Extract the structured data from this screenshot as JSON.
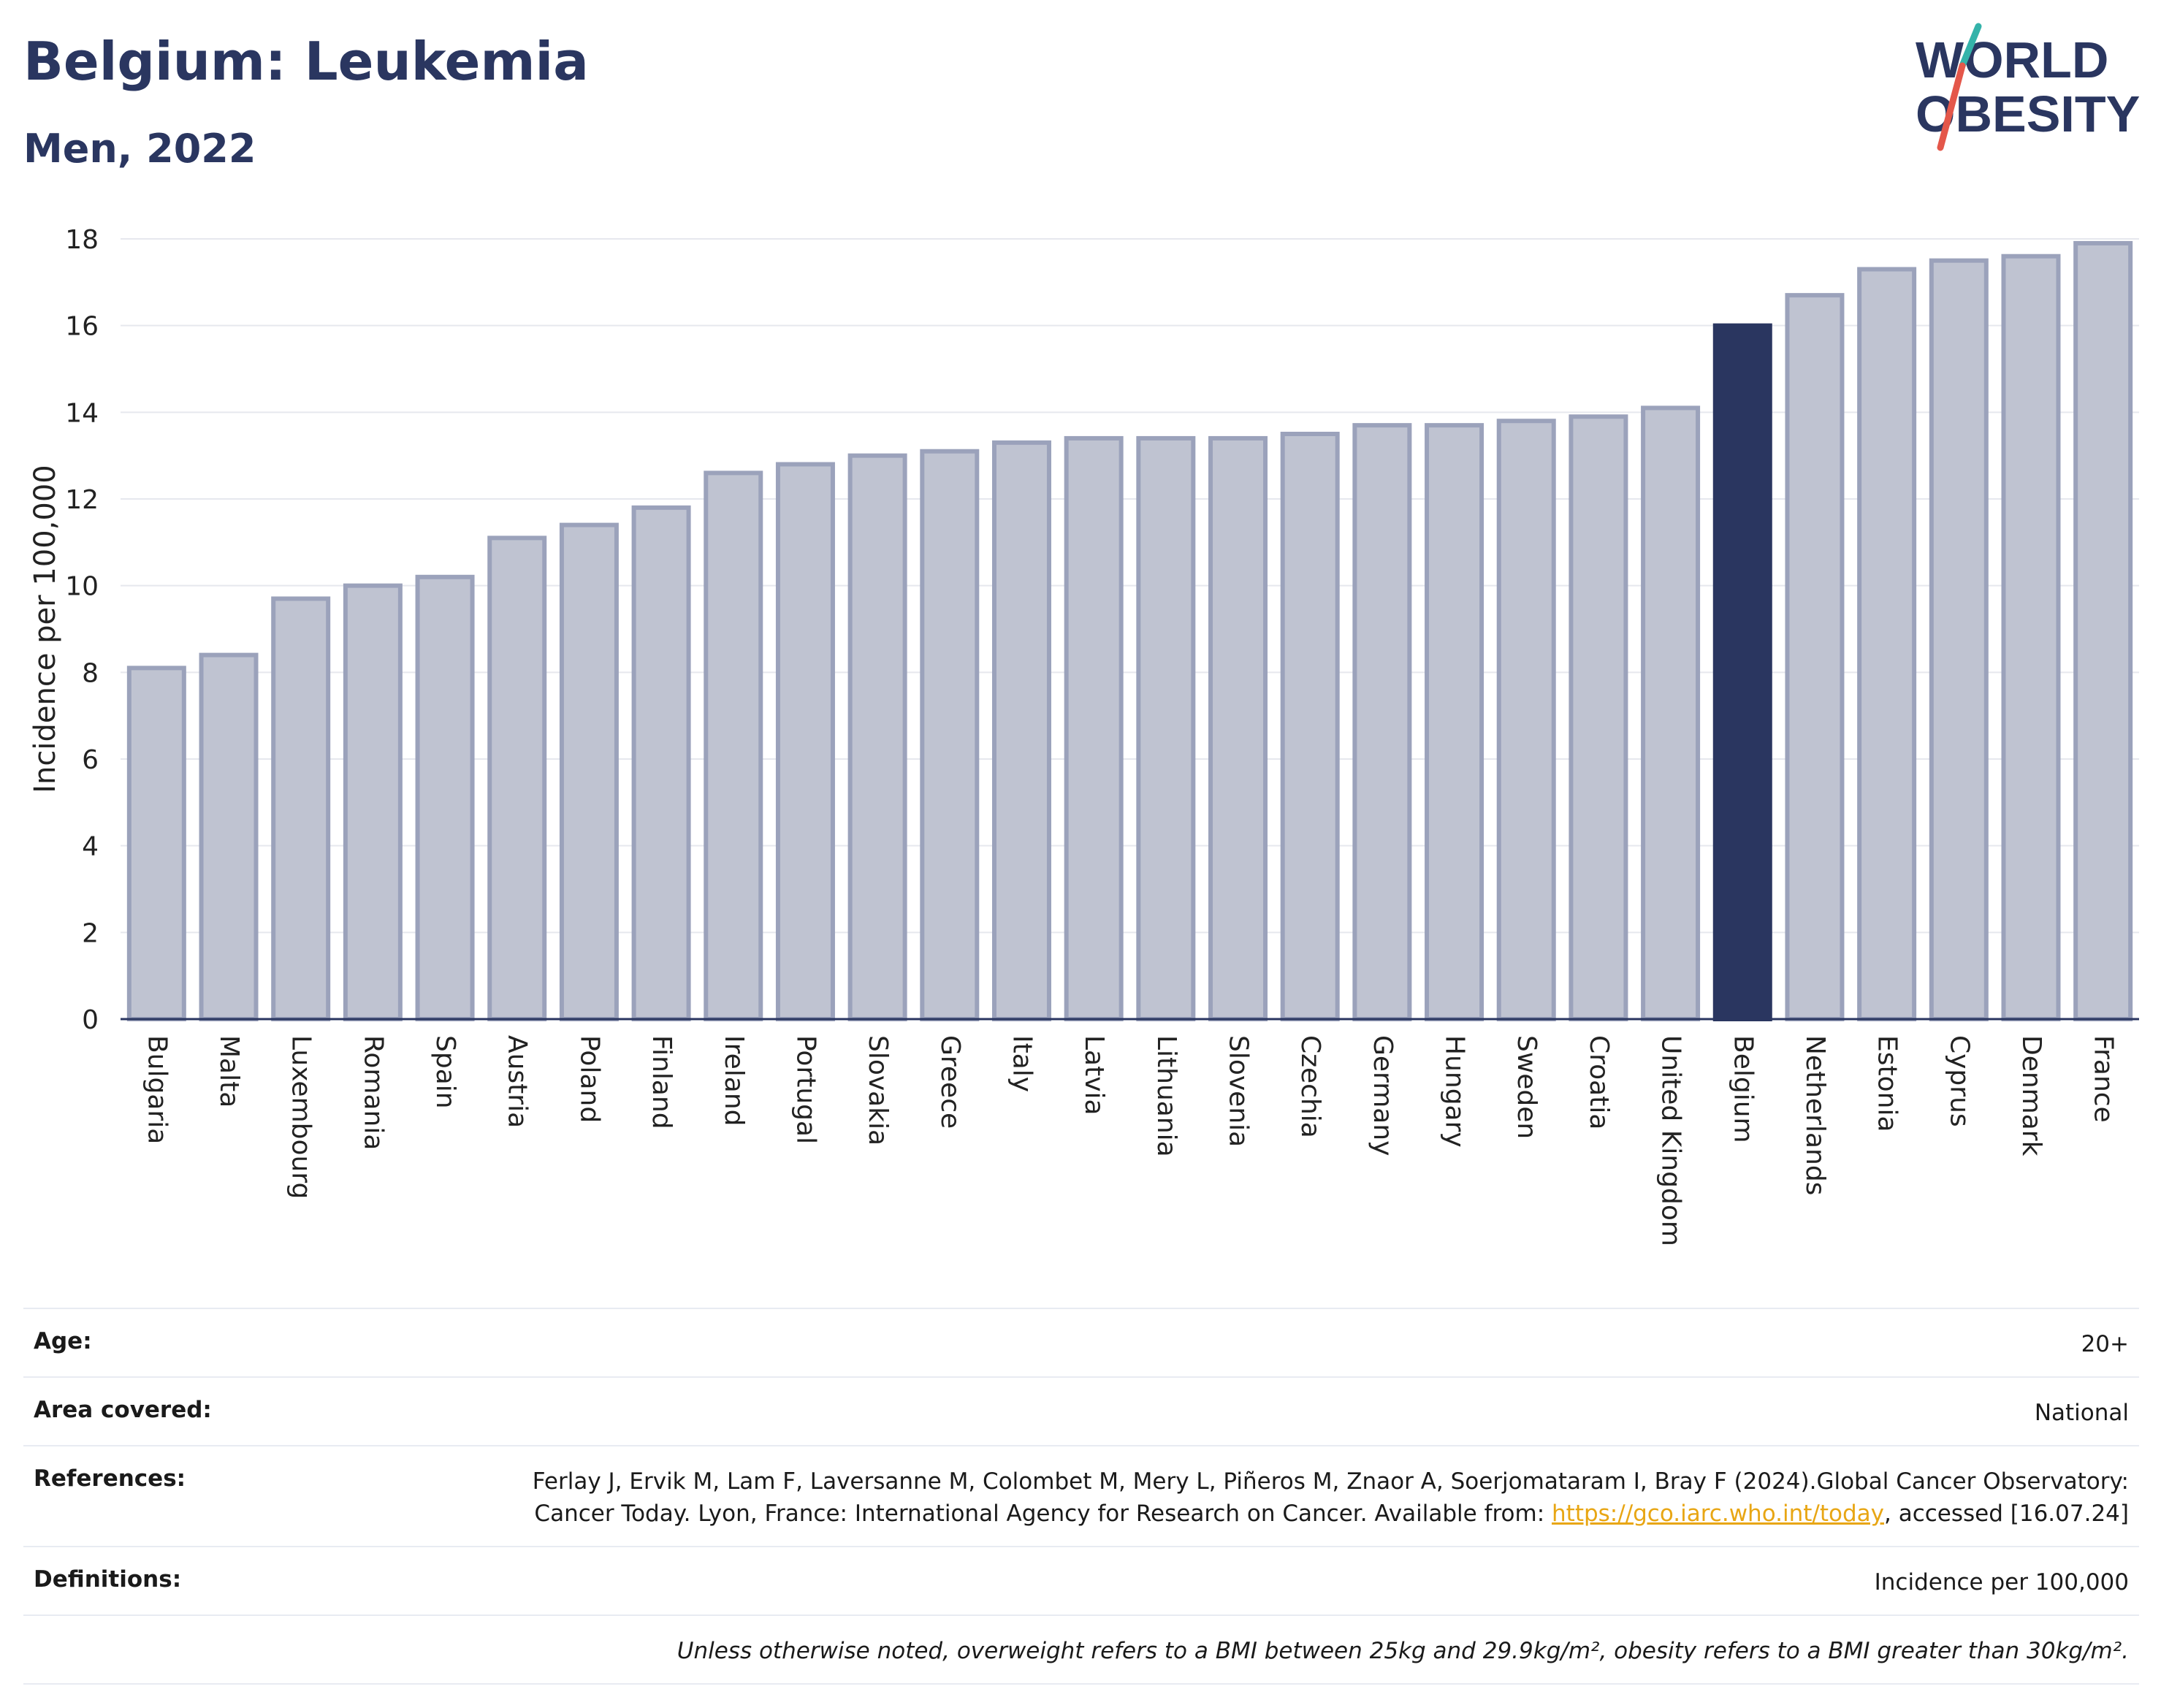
{
  "header": {
    "title": "Belgium: Leukemia",
    "subtitle": "Men, 2022",
    "logo_line1": "WORLD",
    "logo_line2": "OBESITY"
  },
  "colors": {
    "bar": "#bfc3d1",
    "bar_stroke": "#9ba2bb",
    "highlight": "#2a3660",
    "grid": "#e6e8ee",
    "logo_teal": "#34b3aa",
    "logo_red": "#e4574a"
  },
  "chart_data": {
    "type": "bar",
    "ylabel": "Incidence per 100,000",
    "ylim": [
      0,
      18
    ],
    "yticks": [
      0,
      2,
      4,
      6,
      8,
      10,
      12,
      14,
      16,
      18
    ],
    "grid": true,
    "highlight": "Belgium",
    "categories": [
      "Bulgaria",
      "Malta",
      "Luxembourg",
      "Romania",
      "Spain",
      "Austria",
      "Poland",
      "Finland",
      "Ireland",
      "Portugal",
      "Slovakia",
      "Greece",
      "Italy",
      "Latvia",
      "Lithuania",
      "Slovenia",
      "Czechia",
      "Germany",
      "Hungary",
      "Sweden",
      "Croatia",
      "United Kingdom",
      "Belgium",
      "Netherlands",
      "Estonia",
      "Cyprus",
      "Denmark",
      "France"
    ],
    "values": [
      8.1,
      8.4,
      9.7,
      10.0,
      10.2,
      11.1,
      11.4,
      11.8,
      12.6,
      12.8,
      13.0,
      13.1,
      13.3,
      13.4,
      13.4,
      13.4,
      13.5,
      13.7,
      13.7,
      13.8,
      13.9,
      14.1,
      16.0,
      16.7,
      17.3,
      17.5,
      17.6,
      17.9
    ]
  },
  "info": {
    "age_label": "Age:",
    "age_value": "20+",
    "area_label": "Area covered:",
    "area_value": "National",
    "references_label": "References:",
    "references_text": "Ferlay J, Ervik M, Lam F, Laversanne M, Colombet M, Mery L, Piñeros M, Znaor A, Soerjomataram I, Bray F (2024).Global Cancer Observatory: Cancer Today. Lyon, France: International Agency for Research on Cancer. Available from: ",
    "references_link": "https://gco.iarc.who.int/today",
    "references_tail": ", accessed [16.07.24]",
    "definitions_label": "Definitions:",
    "definitions_value": "Incidence per 100,000",
    "note": "Unless otherwise noted, overweight refers to a BMI between 25kg and 29.9kg/m², obesity refers to a BMI greater than 30kg/m²."
  }
}
